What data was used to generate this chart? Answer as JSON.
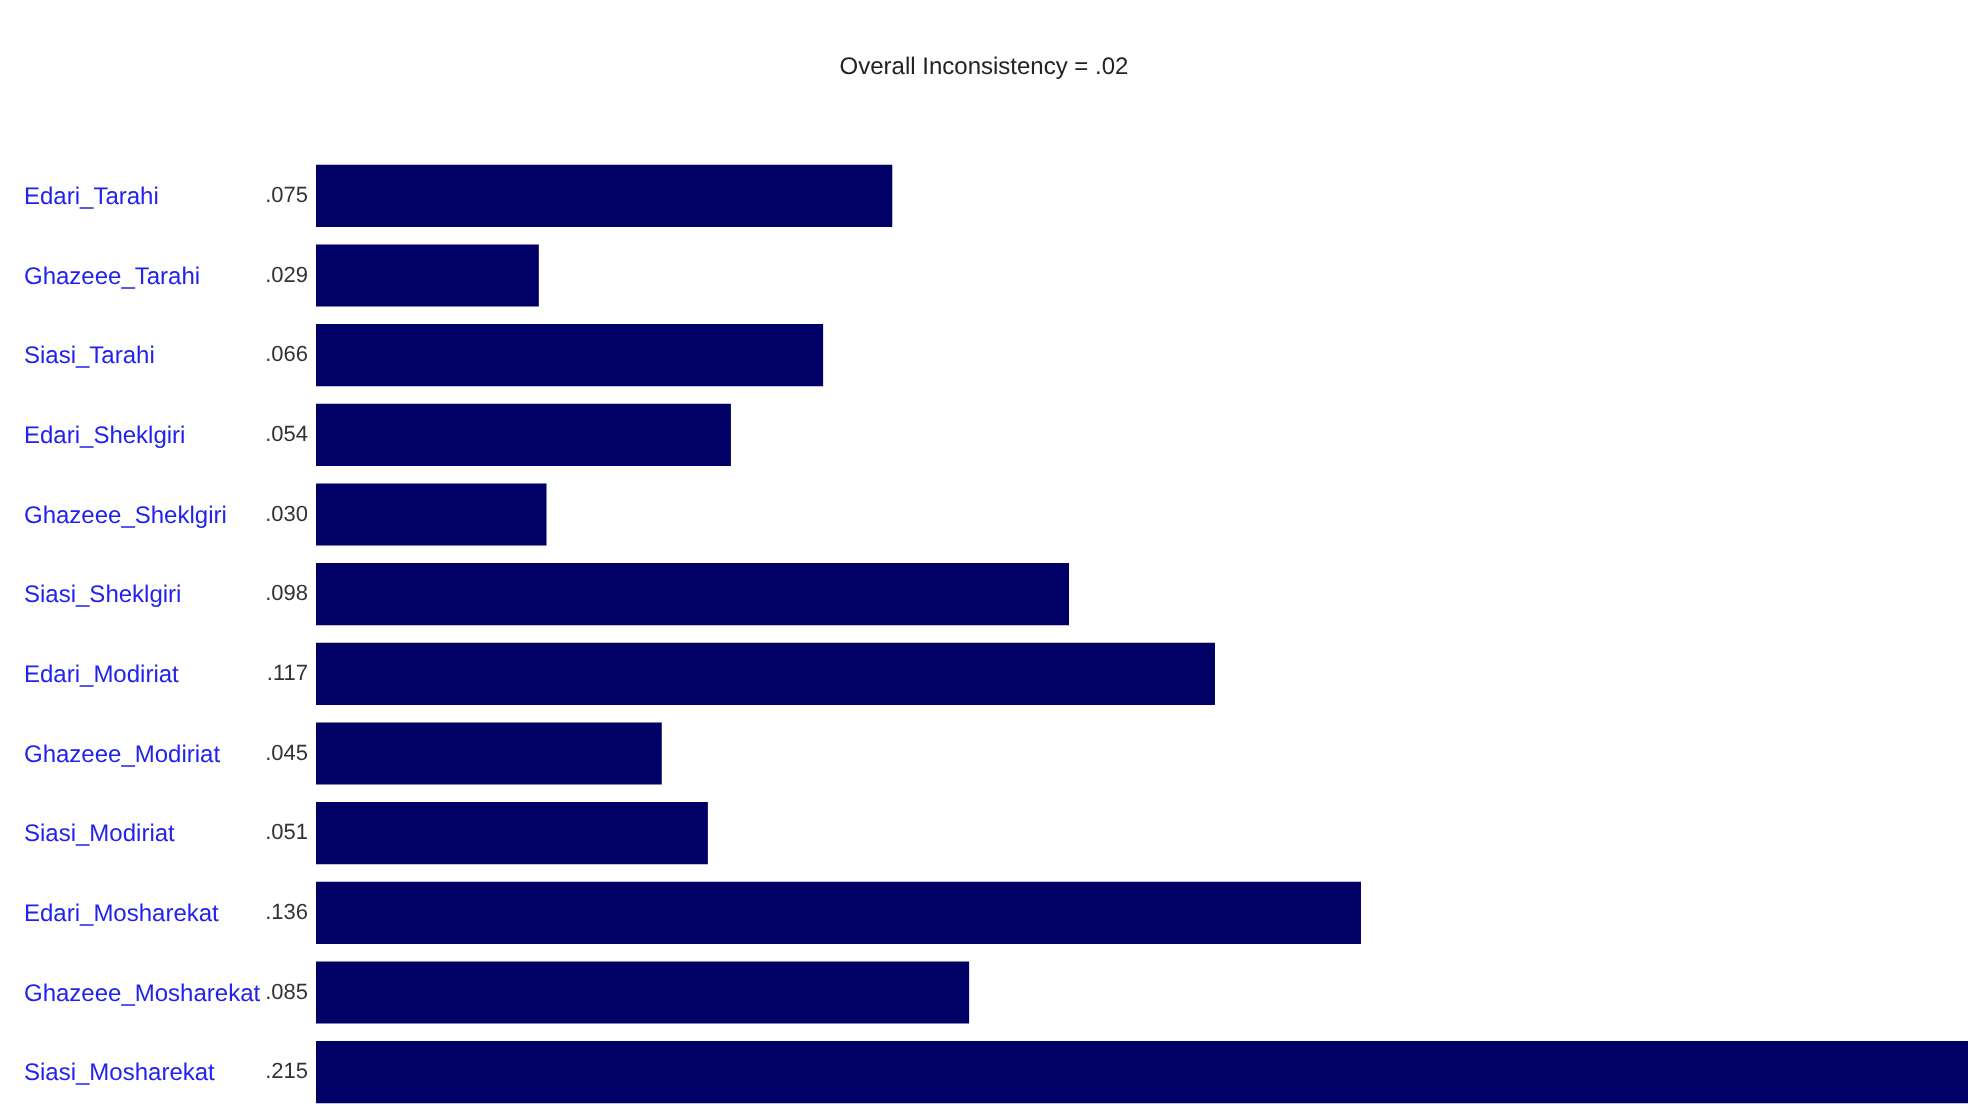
{
  "chart_data": {
    "type": "bar",
    "orientation": "horizontal",
    "title": "Overall Inconsistency = .02",
    "categories": [
      "Edari_Tarahi",
      "Ghazeee_Tarahi",
      "Siasi_Tarahi",
      "Edari_Sheklgiri",
      "Ghazeee_Sheklgiri",
      "Siasi_Sheklgiri",
      "Edari_Modiriat",
      "Ghazeee_Modiriat",
      "Siasi_Modiriat",
      "Edari_Mosharekat",
      "Ghazeee_Mosharekat",
      "Siasi_Mosharekat"
    ],
    "values": [
      0.075,
      0.029,
      0.066,
      0.054,
      0.03,
      0.098,
      0.117,
      0.045,
      0.051,
      0.136,
      0.085,
      0.215
    ],
    "value_labels": [
      ".075",
      ".029",
      ".066",
      ".054",
      ".030",
      ".098",
      ".117",
      ".045",
      ".051",
      ".136",
      ".085",
      ".215"
    ],
    "color": "#000066"
  }
}
